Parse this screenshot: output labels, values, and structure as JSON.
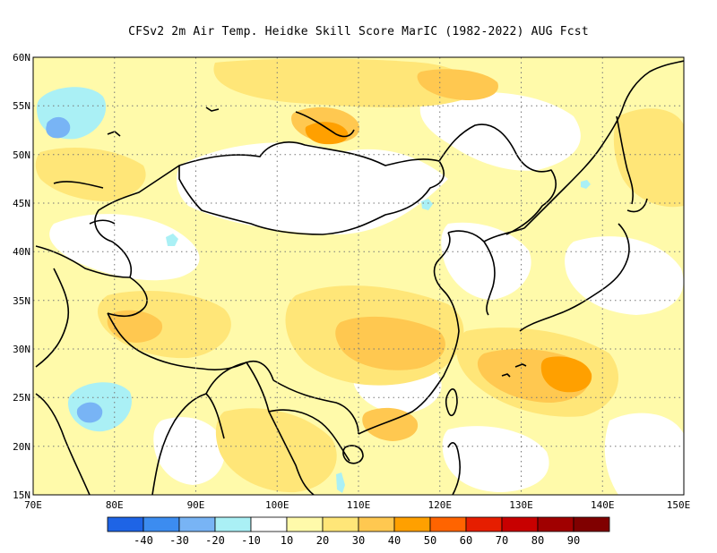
{
  "title": "CFSv2  2m Air Temp. Heidke Skill Score MarIC (1982-2022) AUG Fcst",
  "map": {
    "lon_range": [
      70,
      150
    ],
    "lat_range": [
      15,
      60
    ],
    "lon_ticks": [
      "70E",
      "80E",
      "90E",
      "100E",
      "110E",
      "120E",
      "130E",
      "140E",
      "150E"
    ],
    "lat_ticks": [
      "60N",
      "55N",
      "50N",
      "45N",
      "40N",
      "35N",
      "30N",
      "25N",
      "20N",
      "15N"
    ],
    "grid": "dotted"
  },
  "colorbar": {
    "labels": [
      "-40",
      "-30",
      "-20",
      "-10",
      "10",
      "20",
      "30",
      "40",
      "50",
      "60",
      "70",
      "80",
      "90"
    ],
    "colors": [
      "#1e64e6",
      "#3c8cf0",
      "#78b4f5",
      "#aaf0f5",
      "#ffffff",
      "#fffaaa",
      "#ffe678",
      "#ffc850",
      "#ffa000",
      "#ff6400",
      "#e61e00",
      "#c80000",
      "#a00000",
      "#800000"
    ]
  },
  "fields": {
    "colors": {
      "neg10": "#aaf0f5",
      "neg20": "#78b4f5",
      "neg30": "#3c8cf0",
      "p10": "#fffaaa",
      "p20": "#ffe678",
      "p30": "#ffc850",
      "p40": "#ffa000"
    }
  }
}
